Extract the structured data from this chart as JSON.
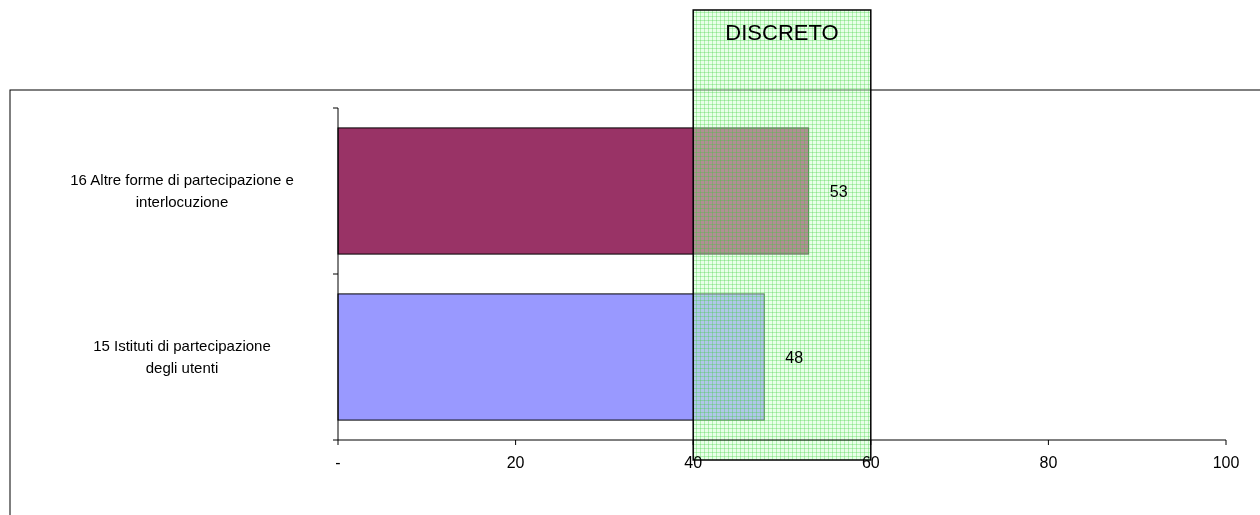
{
  "chart_data": {
    "type": "bar",
    "orientation": "horizontal",
    "categories": [
      "16 Altre forme di partecipazione e interlocuzione",
      "15 Istituti di partecipazione degli utenti"
    ],
    "values": [
      53,
      48
    ],
    "colors": [
      "#993366",
      "#9999ff"
    ],
    "xlim": [
      0,
      100
    ],
    "xticks": [
      {
        "value": 0,
        "label": "-"
      },
      20,
      40,
      60,
      80,
      100
    ],
    "data_labels": true,
    "bands": [
      {
        "axis": "x",
        "from": 40,
        "to": 60,
        "label": "DISCRETO",
        "color": "#ccffcc"
      }
    ]
  }
}
